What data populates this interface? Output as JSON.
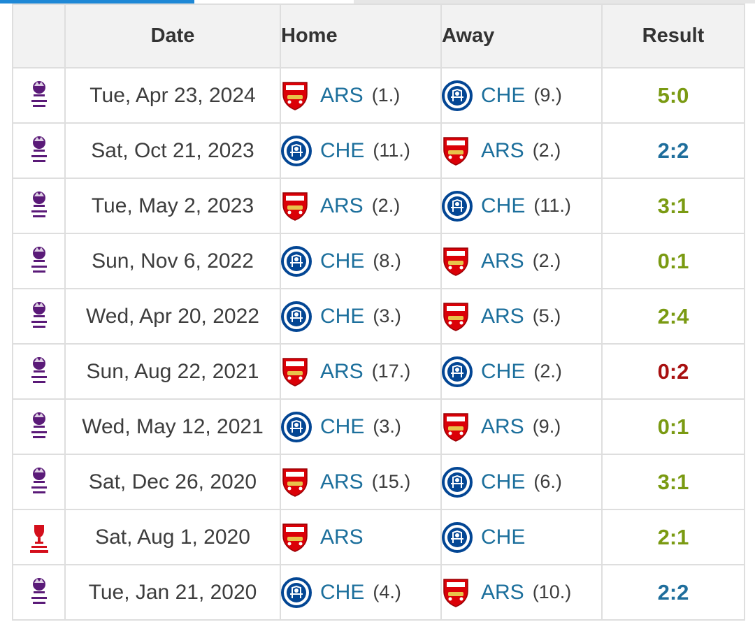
{
  "header": {
    "comp": "",
    "date": "Date",
    "home": "Home",
    "away": "Away",
    "result": "Result"
  },
  "colors": {
    "win": "#7a9a12",
    "draw": "#1f6e9c",
    "loss": "#a81010",
    "team_link": "#1c6f9c"
  },
  "icons": {
    "premier_league": "premier-league-icon",
    "fa_cup": "fa-cup-icon",
    "arsenal": "arsenal-crest-icon",
    "chelsea": "chelsea-crest-icon"
  },
  "matches": [
    {
      "competition": "premier_league",
      "date": "Tue, Apr 23, 2024",
      "home": {
        "team": "ARS",
        "pos": "(1.)"
      },
      "away": {
        "team": "CHE",
        "pos": "(9.)"
      },
      "result": "5:0",
      "outcome": "win"
    },
    {
      "competition": "premier_league",
      "date": "Sat, Oct 21, 2023",
      "home": {
        "team": "CHE",
        "pos": "(11.)"
      },
      "away": {
        "team": "ARS",
        "pos": "(2.)"
      },
      "result": "2:2",
      "outcome": "draw"
    },
    {
      "competition": "premier_league",
      "date": "Tue, May 2, 2023",
      "home": {
        "team": "ARS",
        "pos": "(2.)"
      },
      "away": {
        "team": "CHE",
        "pos": "(11.)"
      },
      "result": "3:1",
      "outcome": "win"
    },
    {
      "competition": "premier_league",
      "date": "Sun, Nov 6, 2022",
      "home": {
        "team": "CHE",
        "pos": "(8.)"
      },
      "away": {
        "team": "ARS",
        "pos": "(2.)"
      },
      "result": "0:1",
      "outcome": "win"
    },
    {
      "competition": "premier_league",
      "date": "Wed, Apr 20, 2022",
      "home": {
        "team": "CHE",
        "pos": "(3.)"
      },
      "away": {
        "team": "ARS",
        "pos": "(5.)"
      },
      "result": "2:4",
      "outcome": "win"
    },
    {
      "competition": "premier_league",
      "date": "Sun, Aug 22, 2021",
      "home": {
        "team": "ARS",
        "pos": "(17.)"
      },
      "away": {
        "team": "CHE",
        "pos": "(2.)"
      },
      "result": "0:2",
      "outcome": "loss"
    },
    {
      "competition": "premier_league",
      "date": "Wed, May 12, 2021",
      "home": {
        "team": "CHE",
        "pos": "(3.)"
      },
      "away": {
        "team": "ARS",
        "pos": "(9.)"
      },
      "result": "0:1",
      "outcome": "win"
    },
    {
      "competition": "premier_league",
      "date": "Sat, Dec 26, 2020",
      "home": {
        "team": "ARS",
        "pos": "(15.)"
      },
      "away": {
        "team": "CHE",
        "pos": "(6.)"
      },
      "result": "3:1",
      "outcome": "win"
    },
    {
      "competition": "fa_cup",
      "date": "Sat, Aug 1, 2020",
      "home": {
        "team": "ARS",
        "pos": ""
      },
      "away": {
        "team": "CHE",
        "pos": ""
      },
      "result": "2:1",
      "outcome": "win"
    },
    {
      "competition": "premier_league",
      "date": "Tue, Jan 21, 2020",
      "home": {
        "team": "CHE",
        "pos": "(4.)"
      },
      "away": {
        "team": "ARS",
        "pos": "(10.)"
      },
      "result": "2:2",
      "outcome": "draw"
    }
  ]
}
